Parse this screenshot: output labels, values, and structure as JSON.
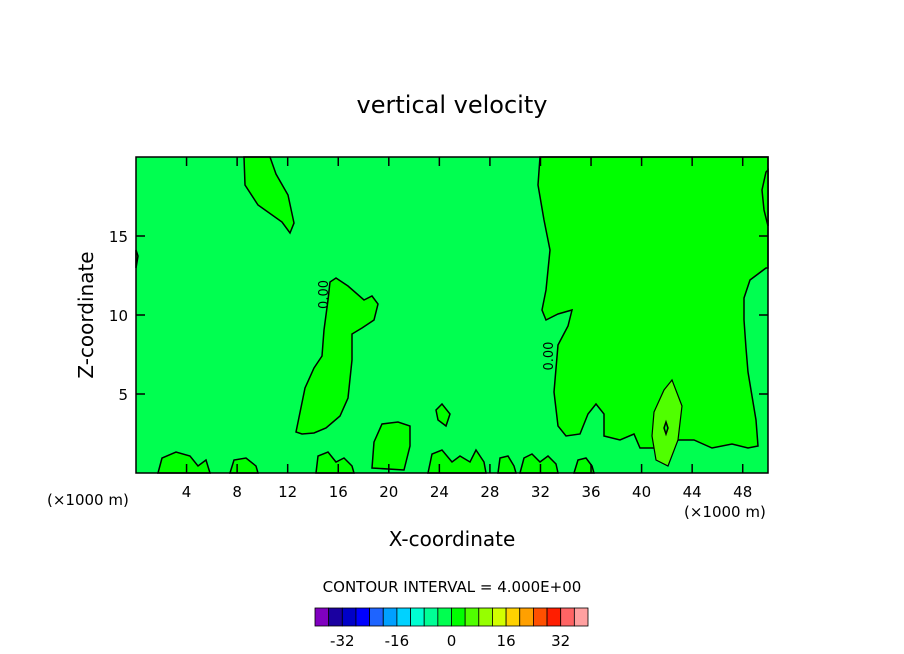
{
  "chart_data": {
    "type": "contour",
    "title": "vertical velocity",
    "xlabel": "X-coordinate",
    "ylabel": "Z-coordinate",
    "x_unit_left": "(×1000 m)",
    "x_unit_right": "(×1000 m)",
    "xlim": [
      0,
      50
    ],
    "ylim": [
      0,
      20
    ],
    "x_ticks": [
      4,
      8,
      12,
      16,
      20,
      24,
      28,
      32,
      36,
      40,
      44,
      48
    ],
    "y_ticks": [
      5,
      10,
      15
    ],
    "contour_labels": [
      {
        "text": "0.00",
        "x": 15.2,
        "z": 11.3
      },
      {
        "text": "0.00",
        "x": 33.0,
        "z": 7.4
      }
    ],
    "contour_interval_text": "CONTOUR INTERVAL = 4.000E+00",
    "colorbar": {
      "levels": [
        -36,
        -32,
        -28,
        -24,
        -20,
        -16,
        -12,
        -8,
        -4,
        0,
        4,
        8,
        12,
        16,
        20,
        24,
        28,
        32,
        36
      ],
      "tick_labels": [
        "-32",
        "-16",
        "0",
        "16",
        "32"
      ],
      "tick_values": [
        -32,
        -16,
        0,
        16,
        32
      ],
      "colors": [
        "#8000c0",
        "#1a00a0",
        "#0000c8",
        "#0000ff",
        "#1e64ff",
        "#00a0ff",
        "#00d2ff",
        "#00ffd2",
        "#00ff96",
        "#00ff50",
        "#00ff00",
        "#50ff00",
        "#96ff00",
        "#d2ff00",
        "#ffd200",
        "#ffa000",
        "#ff5000",
        "#ff1e00",
        "#ff6464",
        "#ffa0a0"
      ]
    },
    "fill_colors": {
      "background": "#00ff50",
      "band_0_4": "#00ff00",
      "band_4_8": "#50ff00"
    },
    "grid": false
  }
}
